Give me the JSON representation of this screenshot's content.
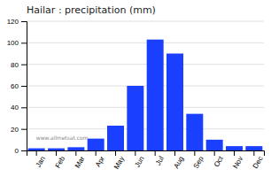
{
  "chart_data": {
    "type": "bar",
    "title": "Hailar : precipitation (mm)",
    "categories": [
      "Jan",
      "Feb",
      "Mar",
      "Apr",
      "May",
      "Jun",
      "Jul",
      "Aug",
      "Sep",
      "Oct",
      "Nov",
      "Dec"
    ],
    "values": [
      2,
      2,
      3,
      11,
      23,
      60,
      103,
      90,
      34,
      10,
      4,
      4
    ],
    "color": "#1a3fff",
    "ylim": [
      0,
      120
    ],
    "yticks": [
      0,
      20,
      40,
      60,
      80,
      100,
      120
    ],
    "grid": true,
    "annotations": [
      "www.allmetsat.com"
    ]
  }
}
